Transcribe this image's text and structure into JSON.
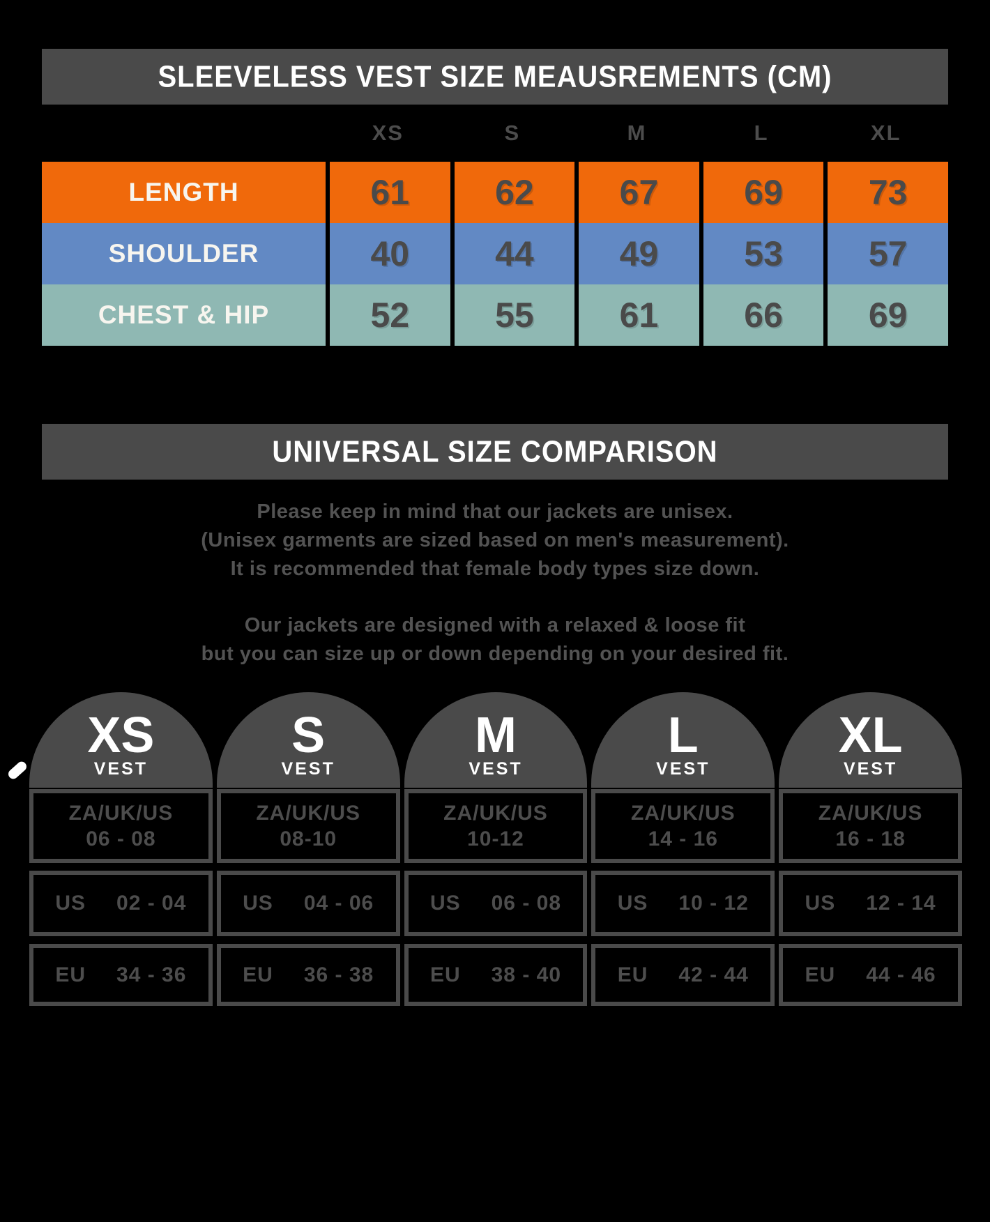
{
  "colors": {
    "background": "#000000",
    "panel_gray": "#4A4A4A",
    "muted_text_gray": "#4F4F4F",
    "row_length_orange": "#F0690B",
    "row_shoulder_blue": "#6289C4",
    "row_chest_hip_teal": "#8FB8B3",
    "white": "#FFFFFF"
  },
  "measurements": {
    "title": "SLEEVELESS VEST SIZE MEAUSREMENTS (CM)",
    "size_headers": [
      "XS",
      "S",
      "M",
      "L",
      "XL"
    ],
    "rows": [
      {
        "label": "LENGTH",
        "color": "#F0690B",
        "values": [
          "61",
          "62",
          "67",
          "69",
          "73"
        ]
      },
      {
        "label": "SHOULDER",
        "color": "#6289C4",
        "values": [
          "40",
          "44",
          "49",
          "53",
          "57"
        ]
      },
      {
        "label": "CHEST & HIP",
        "color": "#8FB8B3",
        "values": [
          "52",
          "55",
          "61",
          "66",
          "69"
        ]
      }
    ]
  },
  "comparison": {
    "title": "UNIVERSAL SIZE COMPARISON",
    "note_lines": [
      "Please keep in mind that our jackets are unisex.",
      "(Unisex garments are sized based on men's measurement).",
      "It is recommended that female body types size down."
    ],
    "fit_lines": [
      "Our jackets are designed with a relaxed & loose fit",
      "but you can size up or down depending on your desired fit."
    ],
    "cards": [
      {
        "size": "XS",
        "garment": "VEST",
        "za_label": "ZA/UK/US",
        "za_range": "06 - 08",
        "us_label": "US",
        "us_range": "02 - 04",
        "eu_label": "EU",
        "eu_range": "34 - 36"
      },
      {
        "size": "S",
        "garment": "VEST",
        "za_label": "ZA/UK/US",
        "za_range": "08-10",
        "us_label": "US",
        "us_range": "04 - 06",
        "eu_label": "EU",
        "eu_range": "36 - 38"
      },
      {
        "size": "M",
        "garment": "VEST",
        "za_label": "ZA/UK/US",
        "za_range": "10-12",
        "us_label": "US",
        "us_range": "06 - 08",
        "eu_label": "EU",
        "eu_range": "38 - 40"
      },
      {
        "size": "L",
        "garment": "VEST",
        "za_label": "ZA/UK/US",
        "za_range": "14 - 16",
        "us_label": "US",
        "us_range": "10 - 12",
        "eu_label": "EU",
        "eu_range": "42 - 44"
      },
      {
        "size": "XL",
        "garment": "VEST",
        "za_label": "ZA/UK/US",
        "za_range": "16 - 18",
        "us_label": "US",
        "us_range": "12 - 14",
        "eu_label": "EU",
        "eu_range": "44 - 46"
      }
    ]
  },
  "chart_data": [
    {
      "type": "table",
      "title": "SLEEVELESS VEST SIZE MEAUSREMENTS (CM)",
      "columns": [
        "",
        "XS",
        "S",
        "M",
        "L",
        "XL"
      ],
      "rows": [
        [
          "LENGTH",
          61,
          62,
          67,
          69,
          73
        ],
        [
          "SHOULDER",
          40,
          44,
          49,
          53,
          57
        ],
        [
          "CHEST & HIP",
          52,
          55,
          61,
          66,
          69
        ]
      ]
    },
    {
      "type": "table",
      "title": "UNIVERSAL SIZE COMPARISON",
      "columns": [
        "XS VEST",
        "S VEST",
        "M VEST",
        "L VEST",
        "XL VEST"
      ],
      "rows": [
        [
          "ZA/UK/US 06 - 08",
          "ZA/UK/US 08-10",
          "ZA/UK/US 10-12",
          "ZA/UK/US 14 - 16",
          "ZA/UK/US 16 - 18"
        ],
        [
          "US 02 - 04",
          "US 04 - 06",
          "US 06 - 08",
          "US 10 - 12",
          "US 12 - 14"
        ],
        [
          "EU 34 - 36",
          "EU 36 - 38",
          "EU 38 - 40",
          "EU 42 - 44",
          "EU 44 - 46"
        ]
      ]
    }
  ]
}
